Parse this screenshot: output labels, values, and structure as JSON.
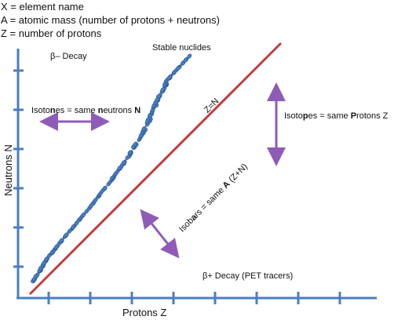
{
  "legend": [
    "X = element name",
    "A = atomic mass (number of protons + neutrons)",
    "Z = number of protons"
  ],
  "axes": {
    "x_label": "Protons Z",
    "y_label": "Neutrons N"
  },
  "regions": {
    "beta_minus": "β– Decay",
    "beta_plus": "β+ Decay (PET tracers)",
    "stable": "Stable nuclides"
  },
  "line_label": "Z=N",
  "isotones": {
    "pre": "Isoto",
    "bold1": "n",
    "mid": "es = same ",
    "bold2": "n",
    "post": "eutrons ",
    "bold3": "N"
  },
  "isotopes": {
    "pre": "Isoto",
    "bold1": "p",
    "mid": "es = same ",
    "bold2": "P",
    "post": "rotons Z"
  },
  "isobars": {
    "pre": "Isob",
    "bold1": "a",
    "mid": "rs = same ",
    "bold2": "A",
    "post": " (Z+N)"
  },
  "colors": {
    "axis": "#4a7fc1",
    "line": "#c83a3a",
    "arrow": "#8e5cb8",
    "dots": "#4a7fc1"
  },
  "ticks": {
    "x_count": 8,
    "y_count": 6
  }
}
